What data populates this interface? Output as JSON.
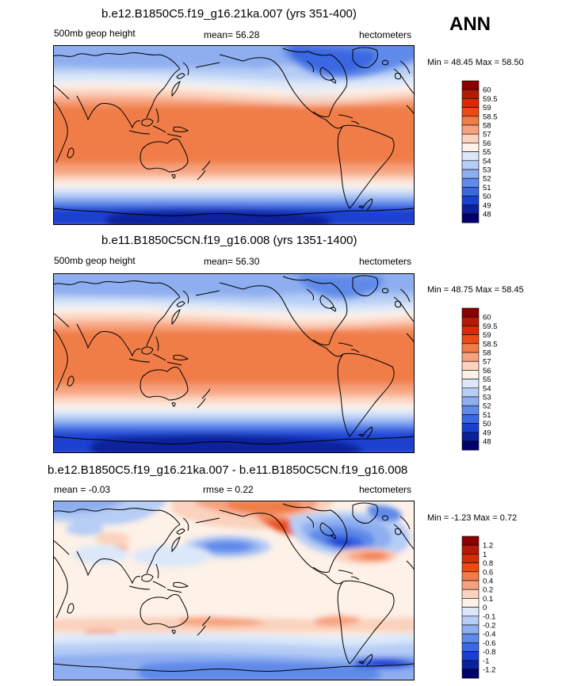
{
  "season": "ANN",
  "units": "hectometers",
  "panels": [
    {
      "title": "b.e12.B1850C5.f19_g16.21ka.007 (yrs 351-400)",
      "variable": "500mb geop height",
      "mean_text": "mean=  56.28",
      "units": "hectometers",
      "minmax": "Min = 48.45 Max = 58.50"
    },
    {
      "title": "b.e11.B1850C5CN.f19_g16.008 (yrs 1351-1400)",
      "variable": "500mb geop height",
      "mean_text": "mean=  56.30",
      "units": "hectometers",
      "minmax": "Min = 48.75 Max = 58.45"
    },
    {
      "title": "b.e12.B1850C5.f19_g16.21ka.007 - b.e11.B1850C5CN.f19_g16.008",
      "mean_text": "mean =  -0.03",
      "rmse_text": "rmse =   0.22",
      "units": "hectometers",
      "minmax": "Min = -1.23 Max =  0.72"
    }
  ],
  "colorbar_abs": {
    "labels": [
      "60",
      "59.5",
      "59",
      "58.5",
      "58",
      "57",
      "56",
      "55",
      "54",
      "53",
      "52",
      "51",
      "50",
      "49",
      "48"
    ],
    "colors": [
      "#8b0000",
      "#b31a06",
      "#d52c05",
      "#ea4b14",
      "#f07d47",
      "#f7a27e",
      "#fbd2bd",
      "#fdf1e8",
      "#dce8f9",
      "#b6cdf5",
      "#8eaef0",
      "#5f8ae9",
      "#3a68e2",
      "#1a40d0",
      "#0a209c",
      "#00006a"
    ]
  },
  "colorbar_diff": {
    "labels": [
      "1.2",
      "1",
      "0.8",
      "0.6",
      "0.4",
      "0.2",
      "0.1",
      "0",
      "-0.1",
      "-0.2",
      "-0.4",
      "-0.6",
      "-0.8",
      "-1",
      "-1.2"
    ],
    "colors": [
      "#8b0000",
      "#b31a06",
      "#d52c05",
      "#ea4b14",
      "#f07d47",
      "#f7a27e",
      "#fbd2bd",
      "#fdf1e8",
      "#dce8f9",
      "#b6cdf5",
      "#8eaef0",
      "#5f8ae9",
      "#3a68e2",
      "#1a40d0",
      "#0a209c",
      "#00006a"
    ]
  }
}
